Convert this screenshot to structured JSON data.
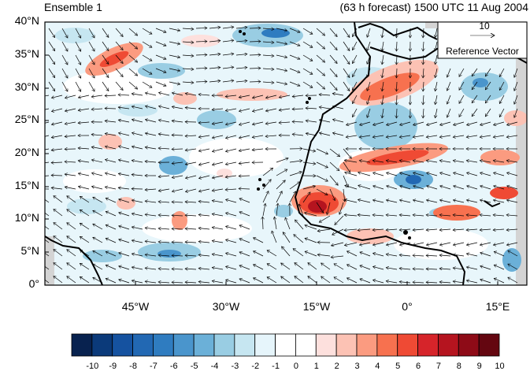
{
  "header": {
    "left_title": "Ensemble 1",
    "right_title": "(63 h forecast) 1500 UTC 11 Aug 2004"
  },
  "map": {
    "lat_labels": [
      "40°N",
      "35°N",
      "30°N",
      "25°N",
      "20°N",
      "15°N",
      "10°N",
      "5°N",
      "0°"
    ],
    "lon_labels": [
      "45°W",
      "30°W",
      "15°W",
      "0°",
      "15°E"
    ],
    "reference_vector": {
      "value": "10",
      "label": "Reference Vector"
    }
  },
  "colorbar": {
    "labels": [
      "-10",
      "-9",
      "-8",
      "-7",
      "-6",
      "-5",
      "-4",
      "-3",
      "-2",
      "-1",
      "0",
      "1",
      "2",
      "3",
      "4",
      "5",
      "6",
      "7",
      "8",
      "9",
      "10"
    ],
    "colors": [
      "#08224f",
      "#0b3a7a",
      "#1552a0",
      "#2268b3",
      "#2f7cc0",
      "#4a95cc",
      "#6bb0d8",
      "#99cde3",
      "#c6e6f1",
      "#e6f5fb",
      "#ffffff",
      "#ffffff",
      "#fde0dd",
      "#fcc2b4",
      "#fb9b80",
      "#f7714f",
      "#ef4a34",
      "#d6242a",
      "#b5141f",
      "#8e0b17",
      "#640610"
    ]
  },
  "chart_data": {
    "type": "vector-field-map",
    "lon_range": [
      "60°W",
      "20°E"
    ],
    "lat_range": [
      "0°",
      "40°N"
    ]
  }
}
